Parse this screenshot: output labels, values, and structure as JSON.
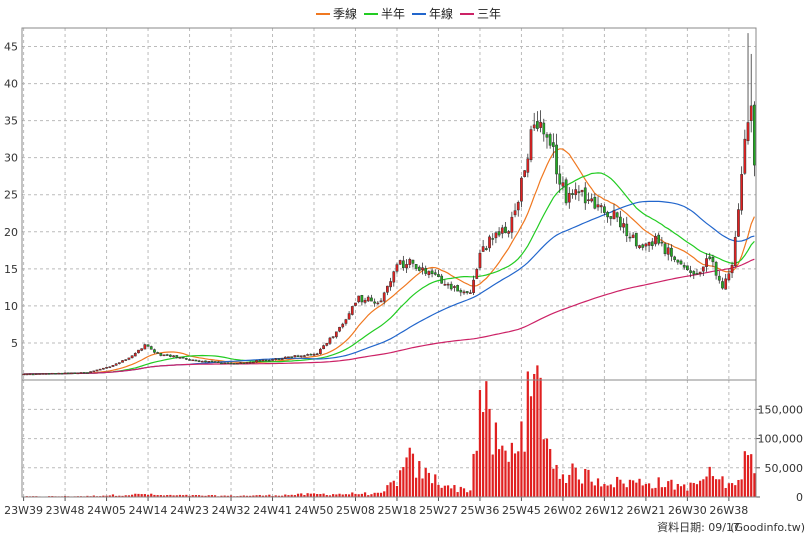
{
  "chart_data": {
    "type": "candlestick",
    "legend": [
      {
        "name": "季線",
        "color": "#f07820"
      },
      {
        "name": "半年",
        "color": "#22cc22"
      },
      {
        "name": "年線",
        "color": "#2266cc"
      },
      {
        "name": "三年",
        "color": "#cc2266"
      }
    ],
    "legend_placement": "top-center",
    "grid": true,
    "x_ticks": [
      "23W39",
      "23W48",
      "24W05",
      "24W14",
      "24W23",
      "24W32",
      "24W41",
      "24W50",
      "25W08",
      "25W18",
      "25W27",
      "25W36",
      "25W45",
      "26W02",
      "26W12",
      "26W21",
      "26W30",
      "26W38"
    ],
    "price_axis": {
      "ticks": [
        5,
        10,
        15,
        20,
        25,
        30,
        35,
        40,
        45
      ],
      "range": [
        0,
        47.5
      ]
    },
    "volume_axis": {
      "ticks": [
        "0",
        "50,000",
        "100,000",
        "150,000"
      ],
      "tick_values": [
        0,
        50000,
        100000,
        150000
      ],
      "range": [
        0,
        190000
      ]
    },
    "candle_colors": {
      "up": "#e02020",
      "down": "#22aa22"
    },
    "volume_color": "#e02020",
    "keypoints": [
      {
        "t": 0,
        "p": 0.8,
        "v": 1000
      },
      {
        "t": 20,
        "p": 1.0,
        "v": 1500
      },
      {
        "t": 27,
        "p": 1.8,
        "v": 3000
      },
      {
        "t": 34,
        "p": 3.2,
        "v": 4000
      },
      {
        "t": 38,
        "p": 4.8,
        "v": 5000
      },
      {
        "t": 42,
        "p": 3.5,
        "v": 3000
      },
      {
        "t": 55,
        "p": 2.6,
        "v": 2500
      },
      {
        "t": 66,
        "p": 2.2,
        "v": 2000
      },
      {
        "t": 78,
        "p": 2.8,
        "v": 3000
      },
      {
        "t": 92,
        "p": 3.6,
        "v": 5000
      },
      {
        "t": 100,
        "p": 7.5,
        "v": 5000
      },
      {
        "t": 105,
        "p": 11.0,
        "v": 6000
      },
      {
        "t": 112,
        "p": 10.5,
        "v": 5000
      },
      {
        "t": 117,
        "p": 15.5,
        "v": 30000
      },
      {
        "t": 121,
        "p": 16.0,
        "v": 60000
      },
      {
        "t": 125,
        "p": 14.8,
        "v": 40000
      },
      {
        "t": 135,
        "p": 12.5,
        "v": 15000
      },
      {
        "t": 140,
        "p": 11.5,
        "v": 12000
      },
      {
        "t": 143,
        "p": 17.0,
        "v": 175000
      },
      {
        "t": 147,
        "p": 19.5,
        "v": 100000
      },
      {
        "t": 152,
        "p": 20.0,
        "v": 60000
      },
      {
        "t": 156,
        "p": 26.5,
        "v": 130000
      },
      {
        "t": 159,
        "p": 33.0,
        "v": 160000
      },
      {
        "t": 162,
        "p": 33.5,
        "v": 180000
      },
      {
        "t": 166,
        "p": 30.5,
        "v": 50000
      },
      {
        "t": 170,
        "p": 24.0,
        "v": 40000
      },
      {
        "t": 174,
        "p": 25.5,
        "v": 40000
      },
      {
        "t": 180,
        "p": 23.5,
        "v": 30000
      },
      {
        "t": 186,
        "p": 22.0,
        "v": 25000
      },
      {
        "t": 192,
        "p": 18.5,
        "v": 25000
      },
      {
        "t": 198,
        "p": 18.8,
        "v": 25000
      },
      {
        "t": 204,
        "p": 16.5,
        "v": 20000
      },
      {
        "t": 210,
        "p": 14.0,
        "v": 18000
      },
      {
        "t": 215,
        "p": 16.5,
        "v": 40000
      },
      {
        "t": 219,
        "p": 12.0,
        "v": 25000
      },
      {
        "t": 222,
        "p": 15.5,
        "v": 20000
      },
      {
        "t": 224,
        "p": 23.0,
        "v": 30000
      },
      {
        "t": 226,
        "p": 32.5,
        "v": 60000
      },
      {
        "t": 228,
        "p": 37.0,
        "v": 120000
      },
      {
        "t": 229,
        "p": 29.0,
        "v": 60000
      }
    ],
    "x_tick_indices": [
      0,
      13,
      26,
      39,
      52,
      65,
      78,
      91,
      104,
      117,
      130,
      143,
      156,
      169,
      182,
      195,
      208,
      221
    ]
  },
  "footer": {
    "date_text": "資料日期: 09/17",
    "source_text": "(Goodinfo.tw)"
  }
}
